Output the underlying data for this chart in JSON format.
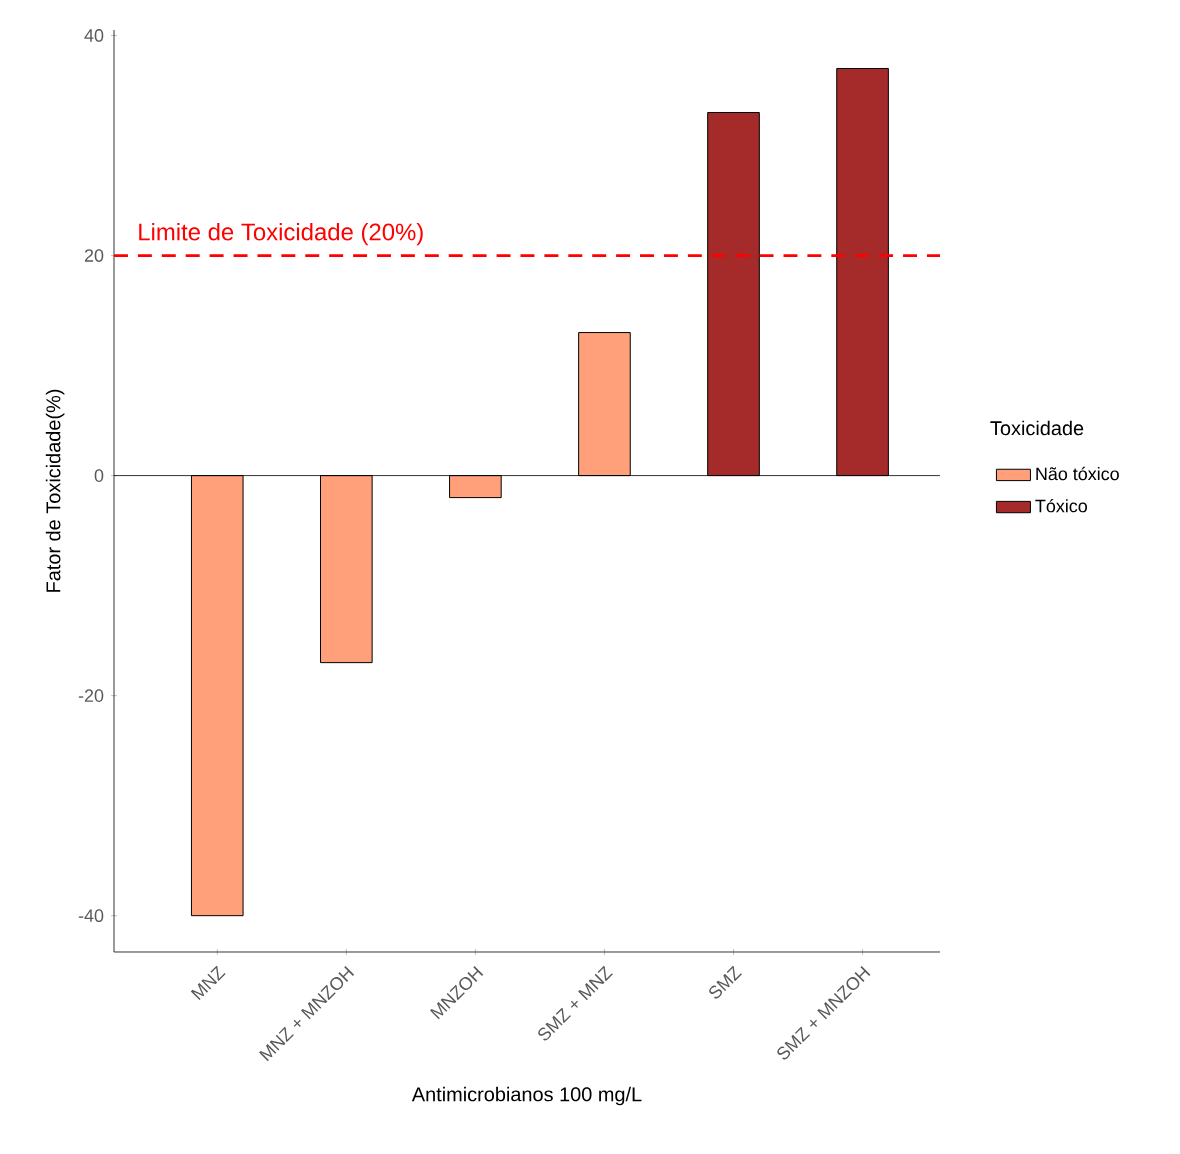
{
  "chart_data": {
    "type": "bar",
    "xlabel": "Antimicrobianos 100 mg/L",
    "ylabel": "Fator de Toxicidade(%)",
    "legend_title": "Toxicidade",
    "categories": [
      "MNZ",
      "MNZ + MNZOH",
      "MNZOH",
      "SMZ + MNZ",
      "SMZ",
      "SMZ + MNZOH"
    ],
    "series": [
      {
        "name": "Não tóxico",
        "color": "#ffa07a",
        "values": [
          -40,
          -17,
          -2,
          13,
          null,
          null
        ]
      },
      {
        "name": "Tóxico",
        "color": "#a52a2a",
        "values": [
          null,
          null,
          null,
          null,
          33,
          37
        ]
      }
    ],
    "ylim": [
      -43.3,
      40.5
    ],
    "yticks": [
      -40,
      -20,
      0,
      20,
      40
    ],
    "ref_lines": [
      {
        "axis": "y",
        "value": 20,
        "label": "Limite de Toxicidade (20%)",
        "color": "#ff0000",
        "line_style": "dashed"
      }
    ],
    "legend": "right",
    "grid": false
  }
}
